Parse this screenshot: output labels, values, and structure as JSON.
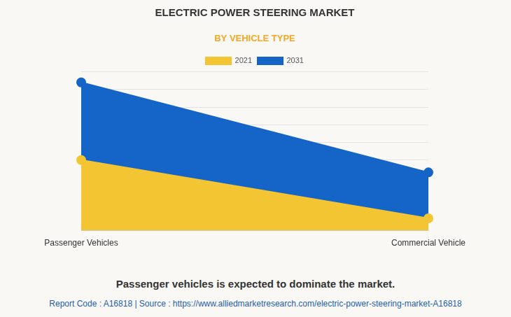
{
  "chart_data": {
    "type": "area",
    "title": "ELECTRIC POWER STEERING MARKET",
    "subtitle": "BY VEHICLE TYPE",
    "categories": [
      "Passenger Vehicles",
      "Commercial Vehicle"
    ],
    "series": [
      {
        "name": "2021",
        "color": "#f4c532",
        "values": [
          4.0,
          0.7
        ]
      },
      {
        "name": "2031",
        "color": "#1565c8",
        "values": [
          8.4,
          3.3
        ]
      }
    ],
    "ylim": [
      0,
      9
    ],
    "yticks": [
      0,
      1,
      2,
      3,
      4,
      5,
      6,
      7,
      8,
      9
    ],
    "grid": true,
    "legend": "top",
    "tick_labels": "x",
    "annotations": [
      "Passenger vehicles is expected to dominate the market.",
      "Report Code : A16818  |  Source : https://www.alliedmarketresearch.com/electric-power-steering-market-A16818"
    ]
  }
}
